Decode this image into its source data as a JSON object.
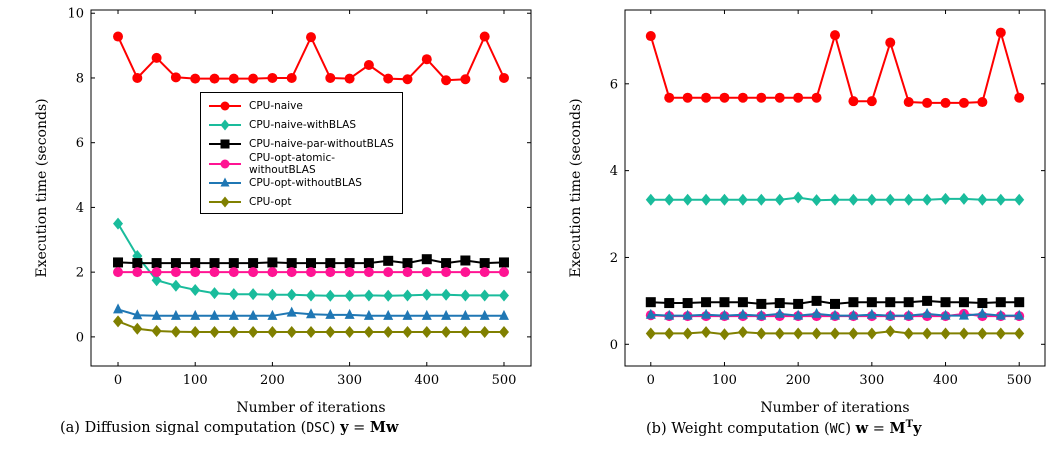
{
  "chart_data": [
    {
      "type": "line",
      "caption": {
        "prefix": "(a) Diffusion signal computation (",
        "abbr": "DSC",
        "suffix": ") ",
        "eq_lhs": "y",
        "eq_mid": " = ",
        "eq_rhs": "Mw"
      },
      "xlabel": "Number of iterations",
      "ylabel": "Execution time (seconds)",
      "xlim": [
        -35,
        535
      ],
      "ylim": [
        -0.9,
        10.1
      ],
      "xticks": [
        0,
        100,
        200,
        300,
        400,
        500
      ],
      "yticks": [
        0,
        2,
        4,
        6,
        8,
        10
      ],
      "grid": false,
      "legend": "center",
      "x": [
        0,
        25,
        50,
        75,
        100,
        125,
        150,
        175,
        200,
        225,
        250,
        275,
        300,
        325,
        350,
        375,
        400,
        425,
        450,
        475,
        500
      ],
      "series": [
        {
          "name": "CPU-naive",
          "color": "#ff0000",
          "marker": "circle",
          "values": [
            9.28,
            8.0,
            8.62,
            8.02,
            7.98,
            7.98,
            7.98,
            7.98,
            8.0,
            8.0,
            9.26,
            8.0,
            7.98,
            8.4,
            7.98,
            7.96,
            8.58,
            7.93,
            7.96,
            9.28,
            8.0
          ]
        },
        {
          "name": "CPU-naive-withBLAS",
          "color": "#1abc9c",
          "marker": "diamond",
          "values": [
            3.5,
            2.5,
            1.75,
            1.58,
            1.45,
            1.35,
            1.32,
            1.32,
            1.3,
            1.3,
            1.28,
            1.27,
            1.27,
            1.28,
            1.27,
            1.28,
            1.3,
            1.3,
            1.28,
            1.28,
            1.28
          ]
        },
        {
          "name": "CPU-naive-par-withoutBLAS",
          "color": "#000000",
          "marker": "square",
          "values": [
            2.3,
            2.28,
            2.28,
            2.28,
            2.28,
            2.28,
            2.28,
            2.28,
            2.3,
            2.28,
            2.28,
            2.28,
            2.28,
            2.28,
            2.35,
            2.28,
            2.4,
            2.28,
            2.36,
            2.28,
            2.3
          ]
        },
        {
          "name": "CPU-opt-atomic-withoutBLAS",
          "color": "#ff1493",
          "marker": "circle",
          "values": [
            2.0,
            2.0,
            2.0,
            2.0,
            2.0,
            2.0,
            2.0,
            2.0,
            2.0,
            2.0,
            2.0,
            2.0,
            2.0,
            2.0,
            2.0,
            2.0,
            2.0,
            2.0,
            2.0,
            2.0,
            2.0
          ]
        },
        {
          "name": "CPU-opt-withoutBLAS",
          "color": "#1f77b4",
          "marker": "triangle",
          "values": [
            0.85,
            0.67,
            0.65,
            0.65,
            0.65,
            0.65,
            0.65,
            0.65,
            0.65,
            0.75,
            0.7,
            0.68,
            0.68,
            0.65,
            0.65,
            0.65,
            0.65,
            0.65,
            0.65,
            0.65,
            0.65
          ]
        },
        {
          "name": "CPU-opt",
          "color": "#808000",
          "marker": "diamond",
          "values": [
            0.48,
            0.25,
            0.18,
            0.16,
            0.15,
            0.15,
            0.15,
            0.15,
            0.15,
            0.15,
            0.15,
            0.15,
            0.15,
            0.15,
            0.15,
            0.15,
            0.15,
            0.15,
            0.15,
            0.15,
            0.15
          ]
        }
      ]
    },
    {
      "type": "line",
      "caption": {
        "prefix": "(b)  Weight computation (",
        "abbr": "WC",
        "suffix": ") ",
        "eq_lhs": "w",
        "eq_mid": " = ",
        "eq_rhs": "M",
        "eq_sup": "T",
        "eq_tail": "y"
      },
      "xlabel": "Number of iterations",
      "ylabel": "Execution time (seconds)",
      "xlim": [
        -35,
        535
      ],
      "ylim": [
        -0.5,
        7.7
      ],
      "xticks": [
        0,
        100,
        200,
        300,
        400,
        500
      ],
      "yticks": [
        0,
        2,
        4,
        6
      ],
      "grid": false,
      "x": [
        0,
        25,
        50,
        75,
        100,
        125,
        150,
        175,
        200,
        225,
        250,
        275,
        300,
        325,
        350,
        375,
        400,
        425,
        450,
        475,
        500
      ],
      "series": [
        {
          "name": "CPU-naive",
          "color": "#ff0000",
          "marker": "circle",
          "values": [
            7.1,
            5.68,
            5.68,
            5.68,
            5.68,
            5.68,
            5.68,
            5.68,
            5.68,
            5.68,
            7.12,
            5.6,
            5.6,
            6.95,
            5.58,
            5.56,
            5.56,
            5.56,
            5.58,
            7.18,
            5.68
          ]
        },
        {
          "name": "CPU-naive-withBLAS",
          "color": "#1abc9c",
          "marker": "diamond",
          "values": [
            3.33,
            3.33,
            3.33,
            3.33,
            3.33,
            3.33,
            3.33,
            3.33,
            3.38,
            3.32,
            3.33,
            3.33,
            3.33,
            3.33,
            3.33,
            3.33,
            3.35,
            3.35,
            3.33,
            3.33,
            3.33
          ]
        },
        {
          "name": "CPU-naive-par-withoutBLAS",
          "color": "#000000",
          "marker": "square",
          "values": [
            0.97,
            0.95,
            0.95,
            0.97,
            0.97,
            0.97,
            0.93,
            0.95,
            0.93,
            1.0,
            0.93,
            0.97,
            0.97,
            0.97,
            0.97,
            1.0,
            0.97,
            0.97,
            0.95,
            0.97,
            0.97
          ]
        },
        {
          "name": "CPU-opt-atomic-withoutBLAS",
          "color": "#ff1493",
          "marker": "circle",
          "values": [
            0.67,
            0.65,
            0.65,
            0.65,
            0.65,
            0.65,
            0.65,
            0.65,
            0.65,
            0.65,
            0.65,
            0.65,
            0.65,
            0.65,
            0.65,
            0.65,
            0.65,
            0.7,
            0.65,
            0.65,
            0.65
          ]
        },
        {
          "name": "CPU-opt-withoutBLAS",
          "color": "#1f77b4",
          "marker": "triangle",
          "values": [
            0.68,
            0.66,
            0.66,
            0.68,
            0.66,
            0.68,
            0.66,
            0.7,
            0.66,
            0.7,
            0.66,
            0.66,
            0.68,
            0.66,
            0.66,
            0.7,
            0.66,
            0.66,
            0.7,
            0.66,
            0.66
          ]
        },
        {
          "name": "CPU-opt",
          "color": "#808000",
          "marker": "diamond",
          "values": [
            0.25,
            0.25,
            0.25,
            0.28,
            0.23,
            0.28,
            0.25,
            0.25,
            0.25,
            0.25,
            0.25,
            0.25,
            0.25,
            0.3,
            0.25,
            0.25,
            0.25,
            0.25,
            0.25,
            0.25,
            0.25
          ]
        }
      ]
    }
  ]
}
